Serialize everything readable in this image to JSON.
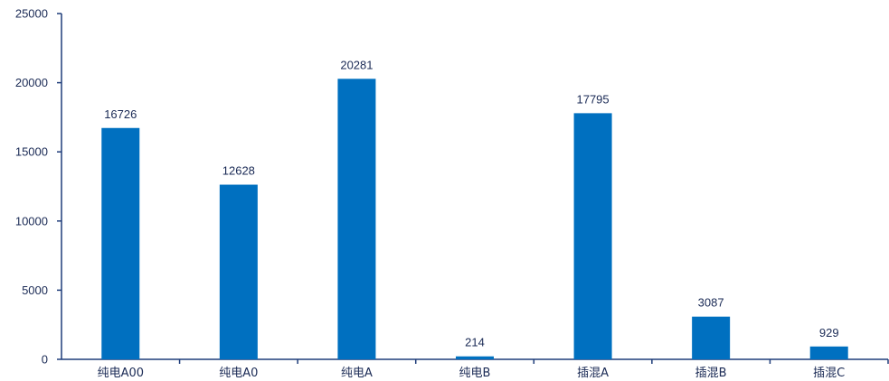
{
  "chart_data": {
    "type": "bar",
    "title": "",
    "xlabel": "",
    "ylabel": "",
    "categories": [
      "纯电A00",
      "纯电A0",
      "纯电A",
      "纯电B",
      "插混A",
      "插混B",
      "插混C"
    ],
    "values": [
      16726,
      12628,
      20281,
      214,
      17795,
      3087,
      929
    ],
    "ylim": [
      0,
      25000
    ],
    "yticks": [
      0,
      5000,
      10000,
      15000,
      20000,
      25000
    ],
    "grid": false,
    "legend": "none",
    "bar_color": "#0070C0",
    "axis_color": "#1F3D7A",
    "text_color": "#1a2a55"
  }
}
